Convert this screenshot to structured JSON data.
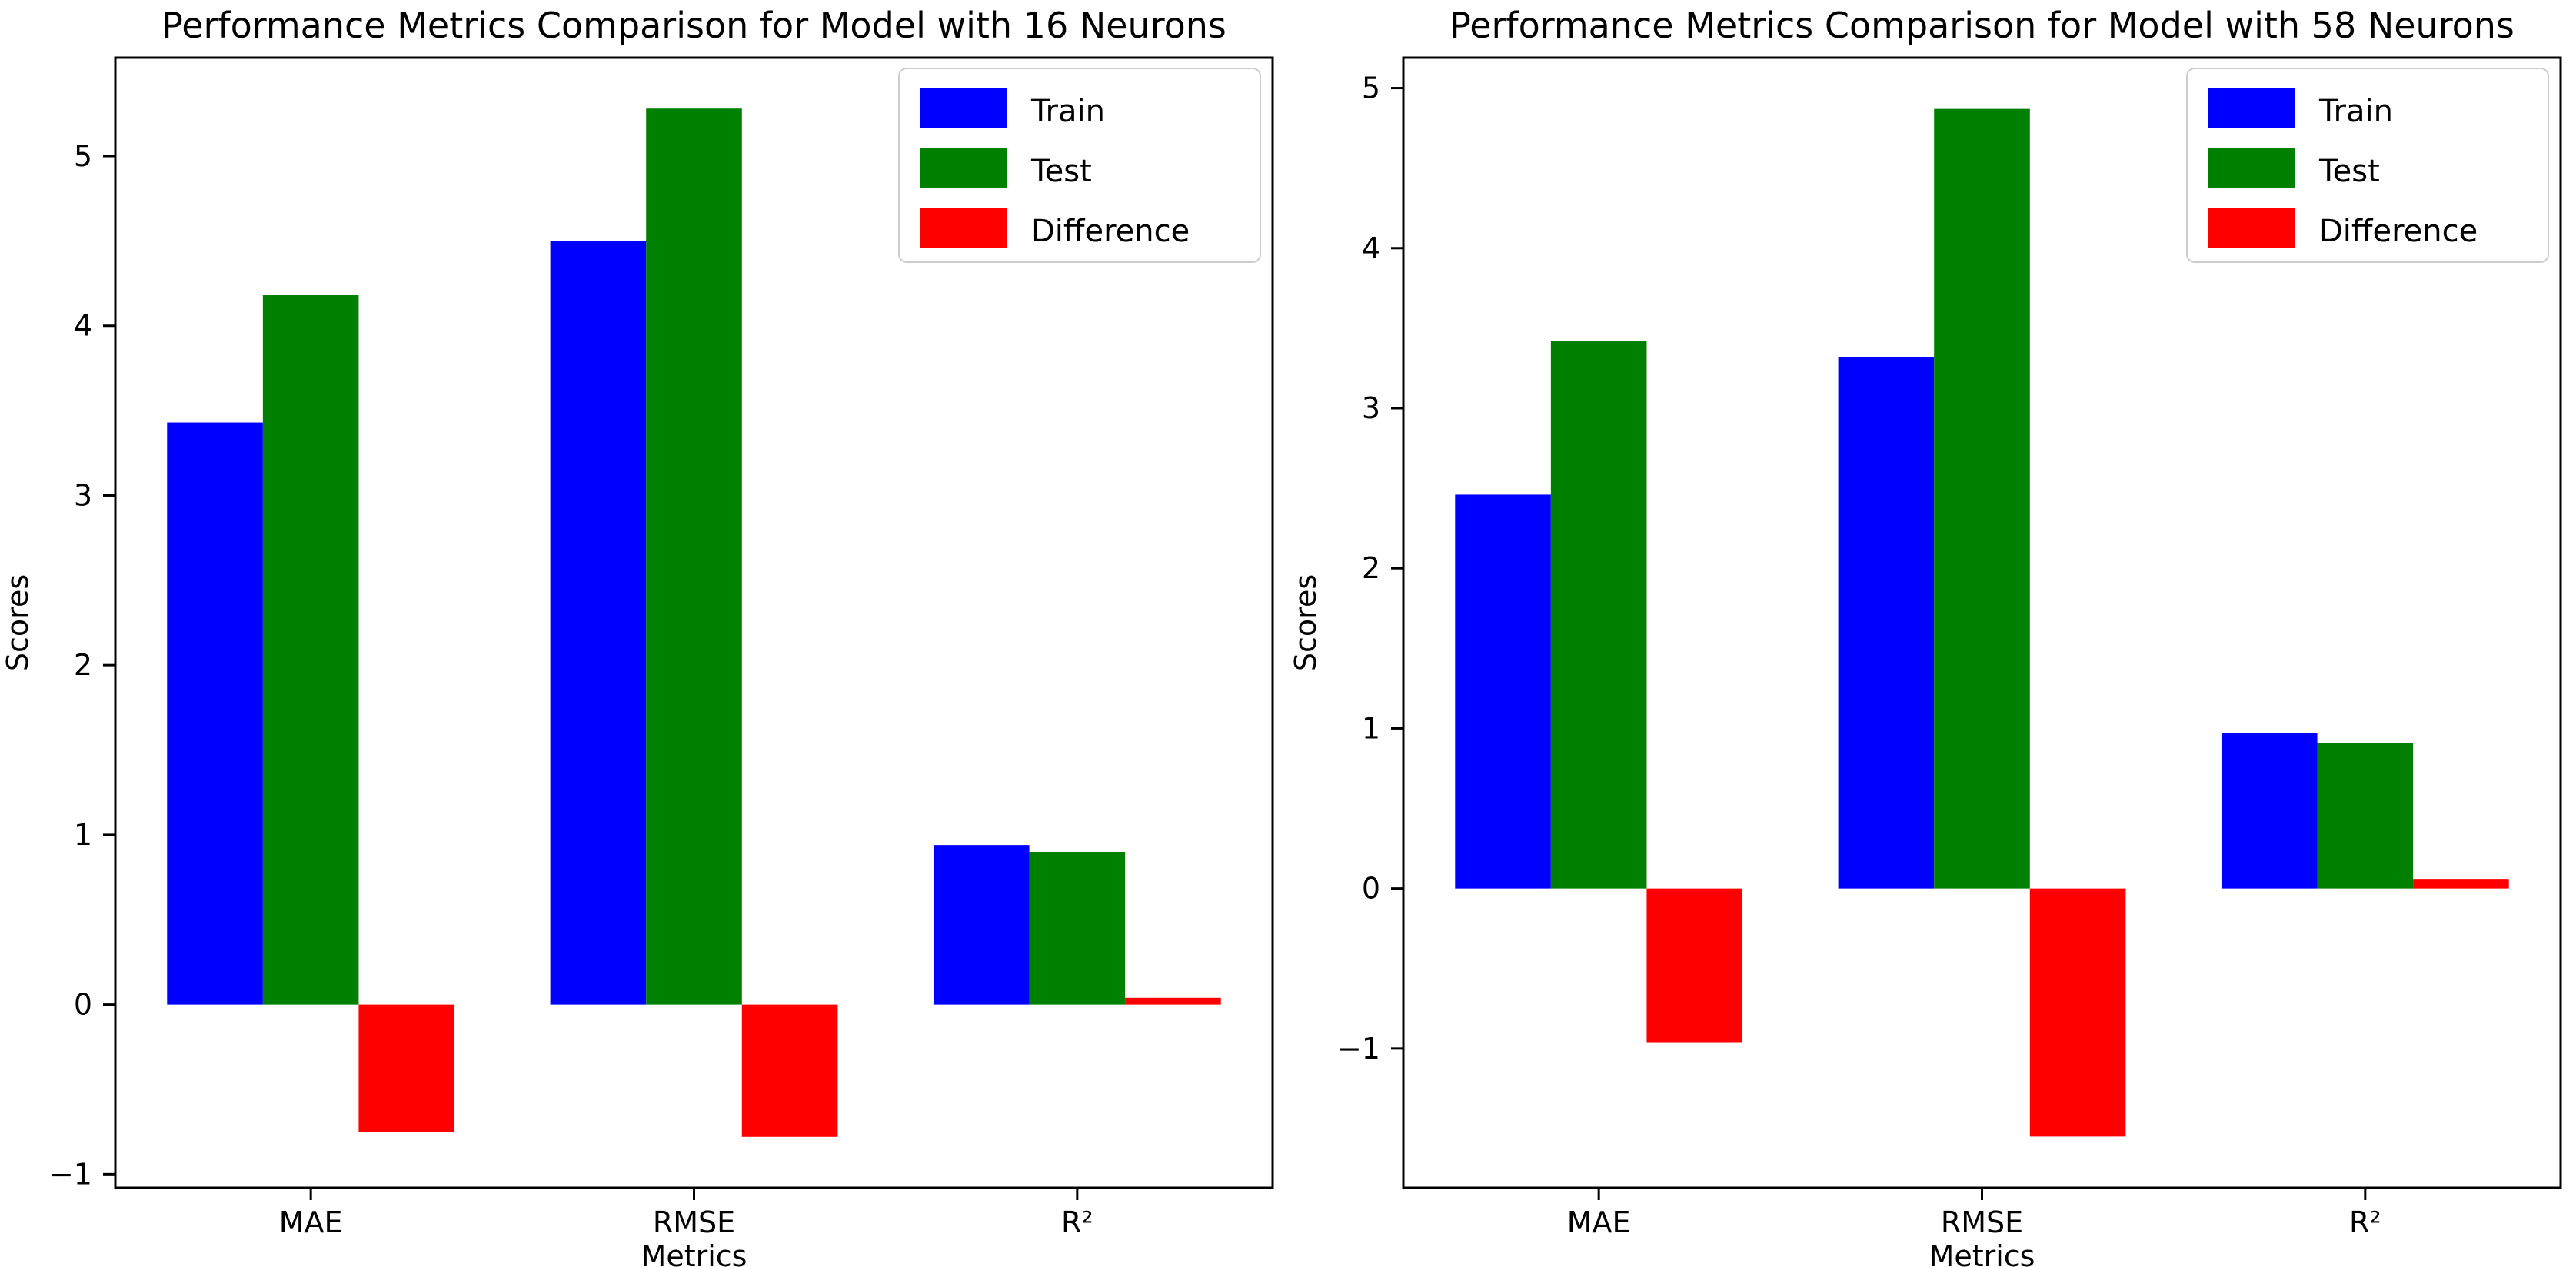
{
  "figure": {
    "background_color": "#ffffff",
    "text_color": "#000000",
    "axes_color": "#000000",
    "legend_border_color": "#cccccc"
  },
  "chart_data": [
    {
      "type": "bar",
      "title": "Performance Metrics Comparison for Model with 16 Neurons",
      "xlabel": "Metrics",
      "ylabel": "Scores",
      "categories": [
        "MAE",
        "RMSE",
        "R²"
      ],
      "series": [
        {
          "name": "Train",
          "color": "#0000ff",
          "values": [
            3.43,
            4.5,
            0.94
          ]
        },
        {
          "name": "Test",
          "color": "#008000",
          "values": [
            4.18,
            5.28,
            0.9
          ]
        },
        {
          "name": "Difference",
          "color": "#ff0000",
          "values": [
            -0.75,
            -0.78,
            0.04
          ]
        }
      ],
      "yticks": [
        -1,
        0,
        1,
        2,
        3,
        4,
        5
      ],
      "ylim": [
        -1.08,
        5.58
      ],
      "legend_position": "top-right",
      "grid": false
    },
    {
      "type": "bar",
      "title": "Performance Metrics Comparison for Model with 58 Neurons",
      "xlabel": "Metrics",
      "ylabel": "Scores",
      "categories": [
        "MAE",
        "RMSE",
        "R²"
      ],
      "series": [
        {
          "name": "Train",
          "color": "#0000ff",
          "values": [
            2.46,
            3.32,
            0.97
          ]
        },
        {
          "name": "Test",
          "color": "#008000",
          "values": [
            3.42,
            4.87,
            0.91
          ]
        },
        {
          "name": "Difference",
          "color": "#ff0000",
          "values": [
            -0.96,
            -1.55,
            0.06
          ]
        }
      ],
      "yticks": [
        -1,
        0,
        1,
        2,
        3,
        4,
        5
      ],
      "ylim": [
        -1.87,
        5.19
      ],
      "legend_position": "top-right",
      "grid": false
    }
  ]
}
